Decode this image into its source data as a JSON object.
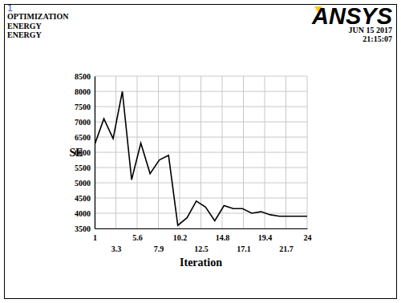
{
  "chart_data": {
    "type": "line",
    "title": "OPTIMIZATION",
    "annotations": [
      "1",
      "ENERGY",
      "ENERGY",
      "ANSYS",
      "JUN 15 2017",
      "21:15:07"
    ],
    "x_label": "Iteration",
    "y_label": "SE",
    "x": [
      1,
      2,
      3,
      4,
      5,
      6,
      7,
      8,
      9,
      10,
      11,
      12,
      13,
      14,
      15,
      16,
      17,
      18,
      19,
      20,
      21,
      22,
      23,
      24
    ],
    "values": [
      6250,
      7100,
      6450,
      8000,
      5100,
      6300,
      5300,
      5750,
      5900,
      3600,
      3850,
      4400,
      4200,
      3750,
      4250,
      4150,
      4150,
      4000,
      4050,
      3950,
      3900,
      3900,
      3900,
      3900
    ],
    "color": "#000000",
    "xlim": [
      1,
      24
    ],
    "xticks": [
      1,
      3.3,
      5.6,
      7.9,
      10.2,
      12.5,
      14.8,
      17.1,
      19.4,
      21.7,
      24
    ],
    "ylim": [
      3500,
      8500
    ],
    "yticks": [
      3500,
      4000,
      4500,
      5000,
      5500,
      6000,
      6500,
      7000,
      7500,
      8000,
      8500
    ],
    "grid": true
  }
}
